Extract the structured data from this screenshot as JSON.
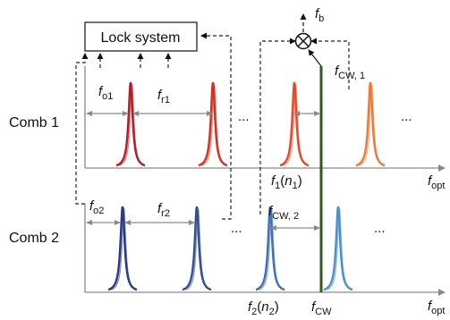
{
  "lock_box": {
    "label": "Lock system"
  },
  "comb1": {
    "label": "Comb 1"
  },
  "comb2": {
    "label": "Comb 2"
  },
  "ellipsis": "...",
  "f_o1": {
    "sym": "f",
    "sub": "o1"
  },
  "f_r1": {
    "sym": "f",
    "sub": "r1"
  },
  "f_o2": {
    "sym": "f",
    "sub": "o2"
  },
  "f_r2": {
    "sym": "f",
    "sub": "r2"
  },
  "f_b": {
    "sym": "f",
    "sub": "b"
  },
  "f_cw1": {
    "sym": "f",
    "sub": "CW, 1"
  },
  "f_cw2": {
    "sym": "f",
    "sub": "CW, 2"
  },
  "f1_n1": {
    "sym": "f",
    "sub": "1",
    "arg_open": "(",
    "arg": "n",
    "arg_sub": "1",
    "arg_close": ")"
  },
  "f2_n2": {
    "sym": "f",
    "sub": "2",
    "arg_open": "(",
    "arg": "n",
    "arg_sub": "2",
    "arg_close": ")"
  },
  "f_cw": {
    "sym": "f",
    "sub": "CW"
  },
  "f_opt1": {
    "sym": "f",
    "sub": "opt"
  },
  "f_opt2": {
    "sym": "f",
    "sub": "opt"
  },
  "colors": {
    "comb1_peaks": [
      "#b21f27",
      "#d63024",
      "#e34a2a",
      "#ef7a38"
    ],
    "comb2_peaks": [
      "#2a3a86",
      "#34508f",
      "#3f72b5",
      "#4e8fcf"
    ],
    "cw_line": "#2f5a1e",
    "axis": "#8a8a8a",
    "dashed": "#222222"
  }
}
